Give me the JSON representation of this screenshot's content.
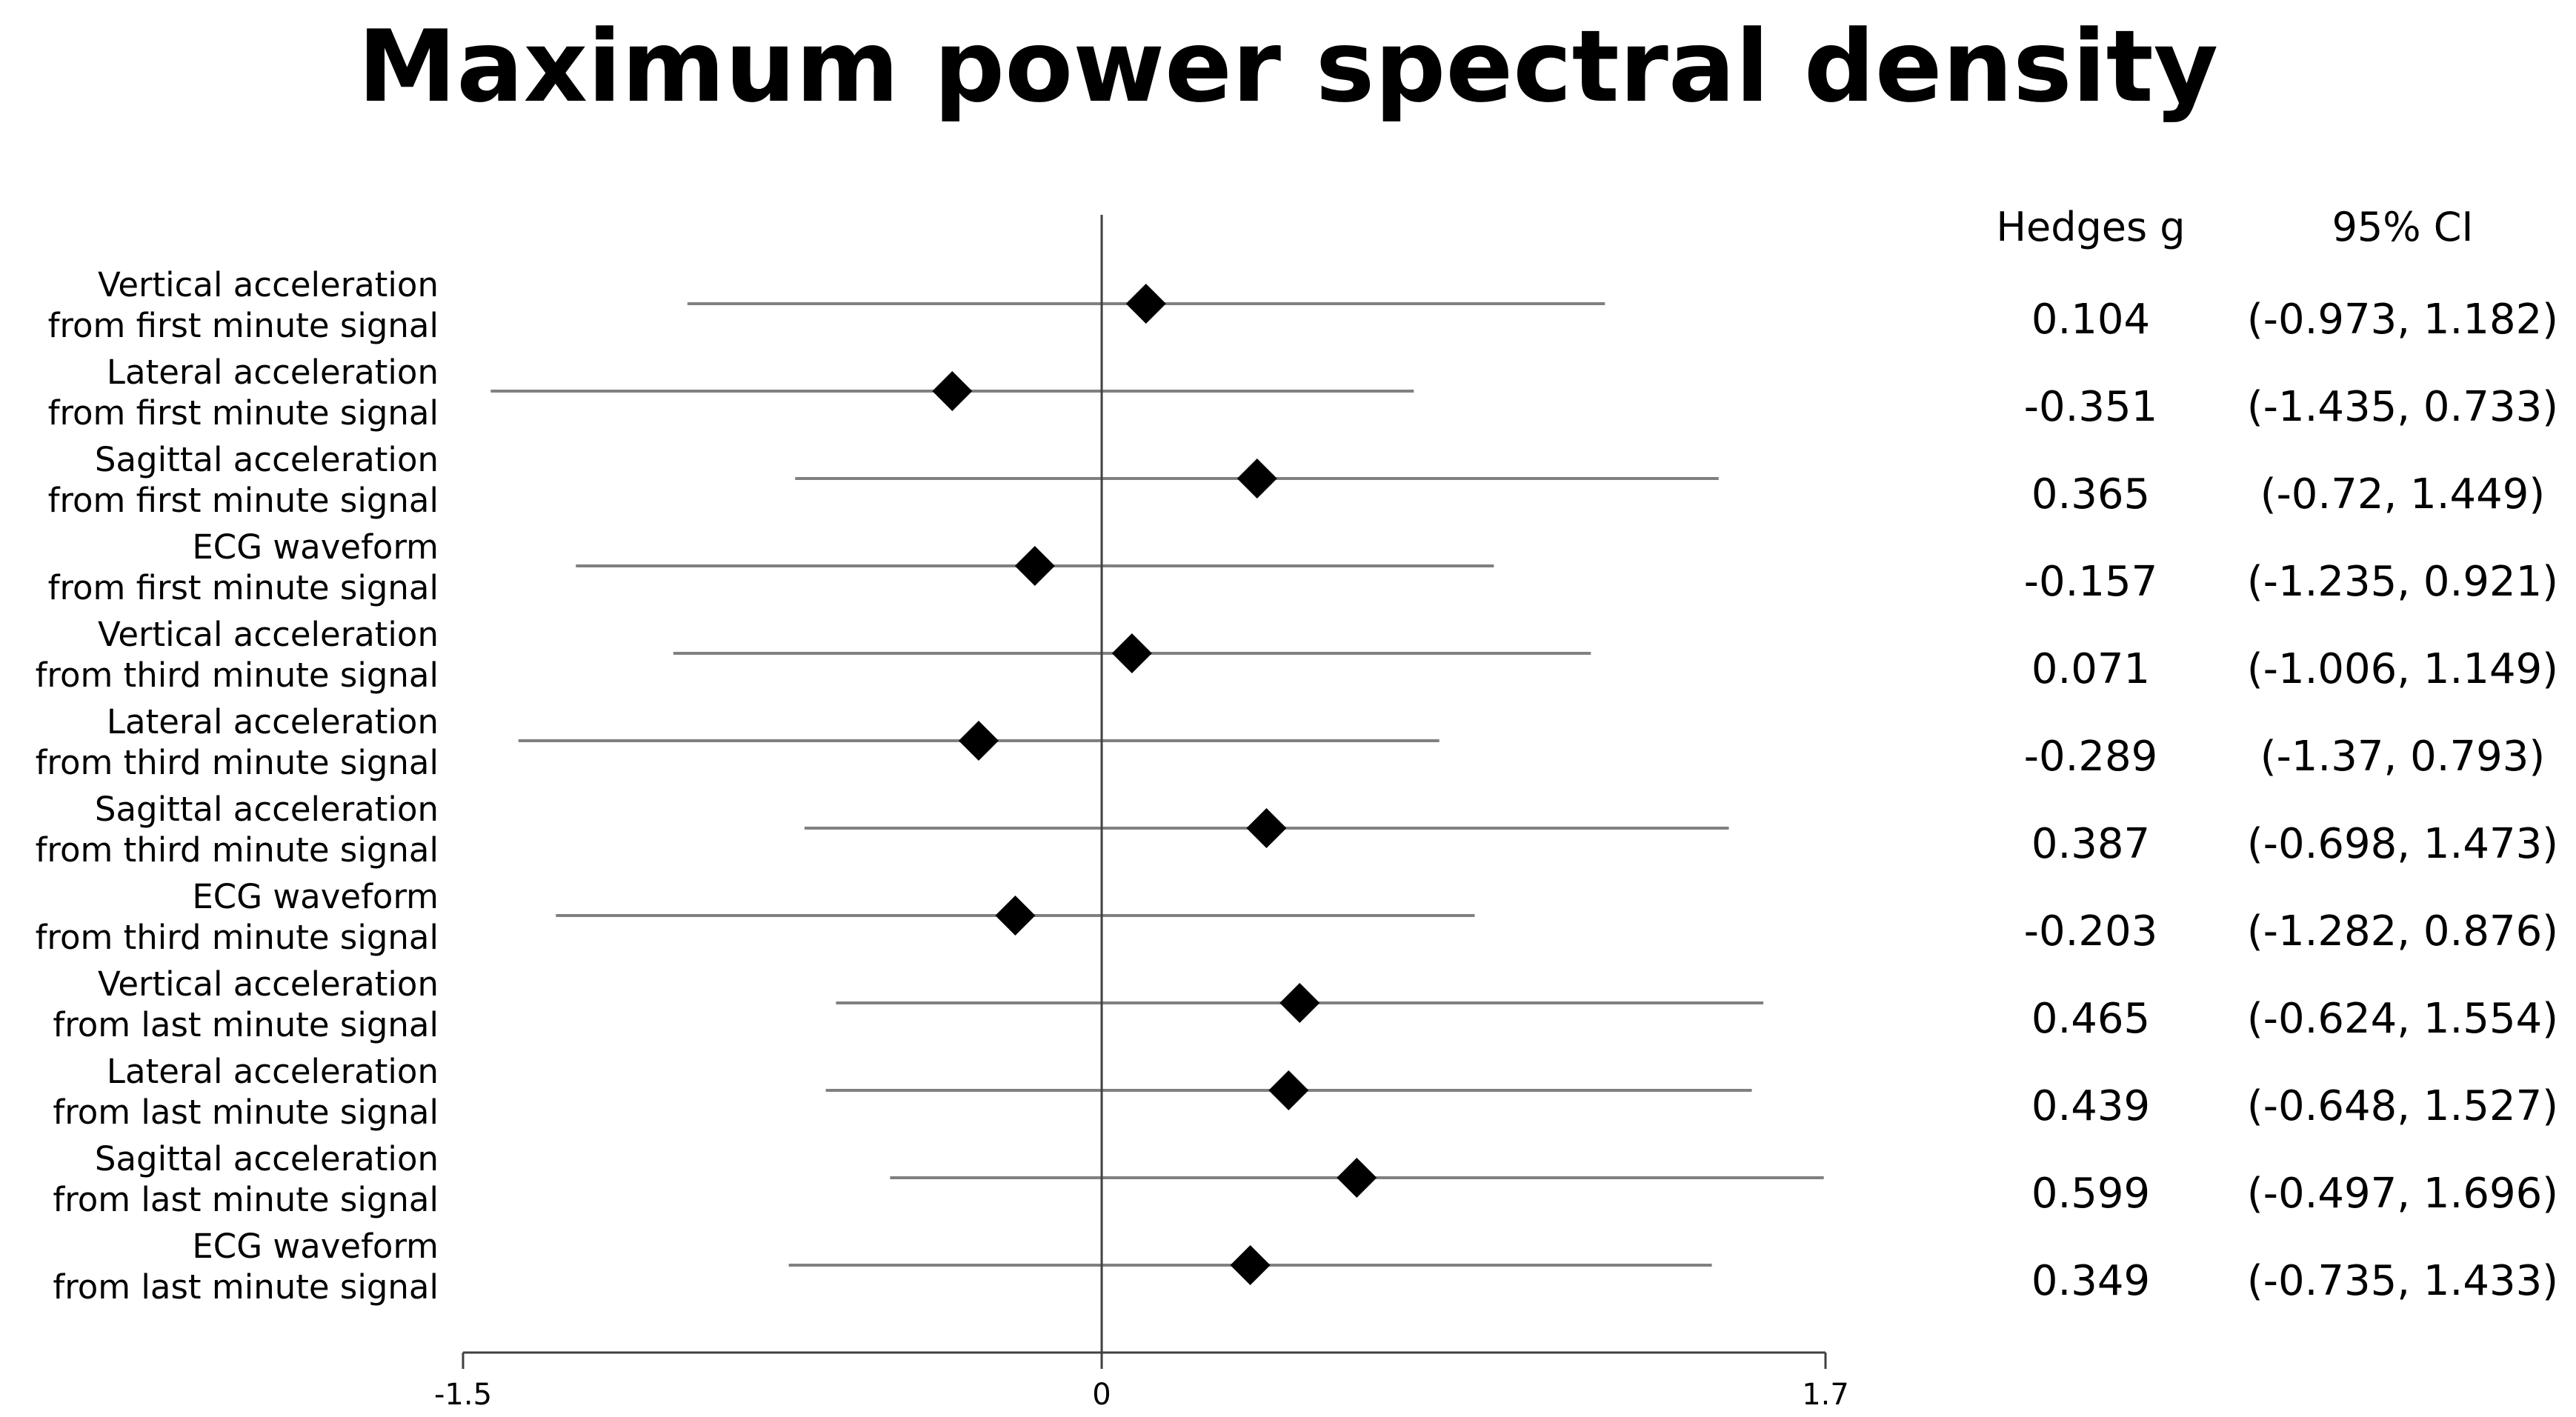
{
  "chart_data": {
    "type": "forest",
    "title": "Maximum power spectral density",
    "columns": {
      "effect": "Hedges g",
      "ci": "95% CI"
    },
    "xlim": [
      -1.5,
      1.7
    ],
    "xticks": [
      {
        "value": -1.5,
        "label": "-1.5"
      },
      {
        "value": 0,
        "label": "0"
      },
      {
        "value": 1.7,
        "label": "1.7"
      }
    ],
    "grid": false,
    "rows": [
      {
        "label1": "Vertical acceleration",
        "label2": "from first minute signal",
        "g": 0.104,
        "lower": -0.973,
        "upper": 1.182,
        "g_text": "0.104",
        "ci_text": "(-0.973, 1.182)"
      },
      {
        "label1": "Lateral acceleration",
        "label2": "from first minute signal",
        "g": -0.351,
        "lower": -1.435,
        "upper": 0.733,
        "g_text": "-0.351",
        "ci_text": "(-1.435, 0.733)"
      },
      {
        "label1": "Sagittal acceleration",
        "label2": "from first minute signal",
        "g": 0.365,
        "lower": -0.72,
        "upper": 1.449,
        "g_text": "0.365",
        "ci_text": "(-0.72, 1.449)"
      },
      {
        "label1": "ECG waveform",
        "label2": "from first minute signal",
        "g": -0.157,
        "lower": -1.235,
        "upper": 0.921,
        "g_text": "-0.157",
        "ci_text": "(-1.235, 0.921)"
      },
      {
        "label1": "Vertical acceleration",
        "label2": "from third minute signal",
        "g": 0.071,
        "lower": -1.006,
        "upper": 1.149,
        "g_text": "0.071",
        "ci_text": "(-1.006, 1.149)"
      },
      {
        "label1": "Lateral acceleration",
        "label2": "from third minute signal",
        "g": -0.289,
        "lower": -1.37,
        "upper": 0.793,
        "g_text": "-0.289",
        "ci_text": "(-1.37, 0.793)"
      },
      {
        "label1": "Sagittal acceleration",
        "label2": "from third minute signal",
        "g": 0.387,
        "lower": -0.698,
        "upper": 1.473,
        "g_text": "0.387",
        "ci_text": "(-0.698, 1.473)"
      },
      {
        "label1": "ECG waveform",
        "label2": "from third minute signal",
        "g": -0.203,
        "lower": -1.282,
        "upper": 0.876,
        "g_text": "-0.203",
        "ci_text": "(-1.282, 0.876)"
      },
      {
        "label1": "Vertical acceleration",
        "label2": "from last minute signal",
        "g": 0.465,
        "lower": -0.624,
        "upper": 1.554,
        "g_text": "0.465",
        "ci_text": "(-0.624, 1.554)"
      },
      {
        "label1": "Lateral acceleration",
        "label2": "from last minute signal",
        "g": 0.439,
        "lower": -0.648,
        "upper": 1.527,
        "g_text": "0.439",
        "ci_text": "(-0.648, 1.527)"
      },
      {
        "label1": "Sagittal acceleration",
        "label2": "from last minute signal",
        "g": 0.599,
        "lower": -0.497,
        "upper": 1.696,
        "g_text": "0.599",
        "ci_text": "(-0.497, 1.696)"
      },
      {
        "label1": "ECG waveform",
        "label2": "from last minute signal",
        "g": 0.349,
        "lower": -0.735,
        "upper": 1.433,
        "g_text": "0.349",
        "ci_text": "(-0.735, 1.433)"
      }
    ],
    "colors": {
      "marker": "#000000",
      "ci_line": "#808080",
      "axis": "#404040"
    }
  }
}
